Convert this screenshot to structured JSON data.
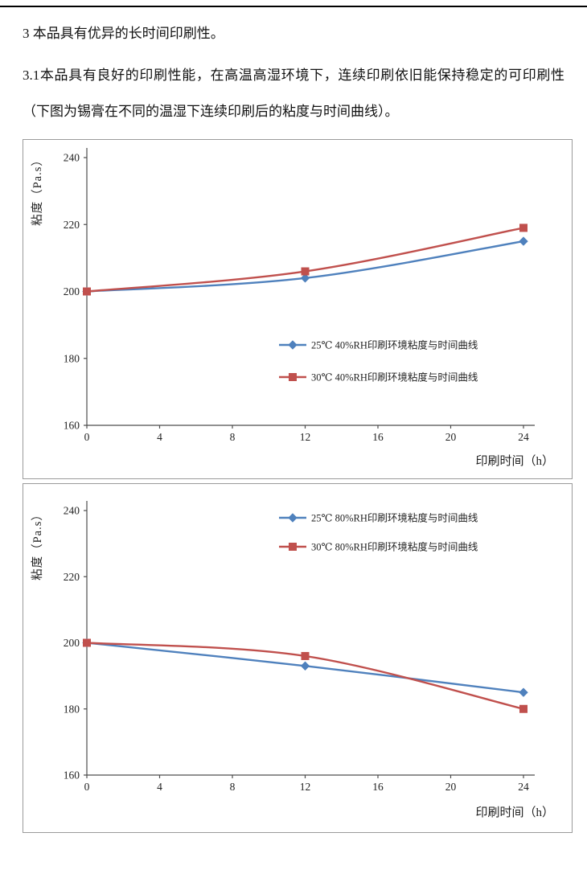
{
  "document": {
    "heading": "3 本品具有优异的长时间印刷性。",
    "paragraph": "3.1本品具有良好的印刷性能，在高温高湿环境下，连续印刷依旧能保持稳定的可印刷性（下图为锡膏在不同的温湿下连续印刷后的粘度与时间曲线）。"
  },
  "chart_data": [
    {
      "type": "line",
      "title": "",
      "x": [
        0,
        12,
        24
      ],
      "series": [
        {
          "name": "25℃ 40%RH印刷环境粘度与时间曲线",
          "values": [
            200,
            204,
            215
          ],
          "color": "#4F81BD",
          "marker": "diamond"
        },
        {
          "name": "30℃ 40%RH印刷环境粘度与时间曲线",
          "values": [
            200,
            206,
            219
          ],
          "color": "#C0504D",
          "marker": "square"
        }
      ],
      "xlabel": "印刷时间（h）",
      "ylabel": "粘度（Pa.s）",
      "xlim": [
        0,
        24
      ],
      "ylim": [
        160,
        240
      ],
      "xticks": [
        0,
        4,
        8,
        12,
        16,
        20,
        24
      ],
      "yticks": [
        160,
        180,
        200,
        220,
        240
      ],
      "grid": false,
      "legend_position": "center-right-inside"
    },
    {
      "type": "line",
      "title": "",
      "x": [
        0,
        12,
        24
      ],
      "series": [
        {
          "name": "25℃ 80%RH印刷环境粘度与时间曲线",
          "values": [
            200,
            193,
            185
          ],
          "color": "#4F81BD",
          "marker": "diamond"
        },
        {
          "name": "30℃ 80%RH印刷环境粘度与时间曲线",
          "values": [
            200,
            196,
            180
          ],
          "color": "#C0504D",
          "marker": "square"
        }
      ],
      "xlabel": "印刷时间（h）",
      "ylabel": "粘度（Pa.s）",
      "xlim": [
        0,
        24
      ],
      "ylim": [
        160,
        240
      ],
      "xticks": [
        0,
        4,
        8,
        12,
        16,
        20,
        24
      ],
      "yticks": [
        160,
        180,
        200,
        220,
        240
      ],
      "grid": false,
      "legend_position": "top-center-inside"
    }
  ]
}
